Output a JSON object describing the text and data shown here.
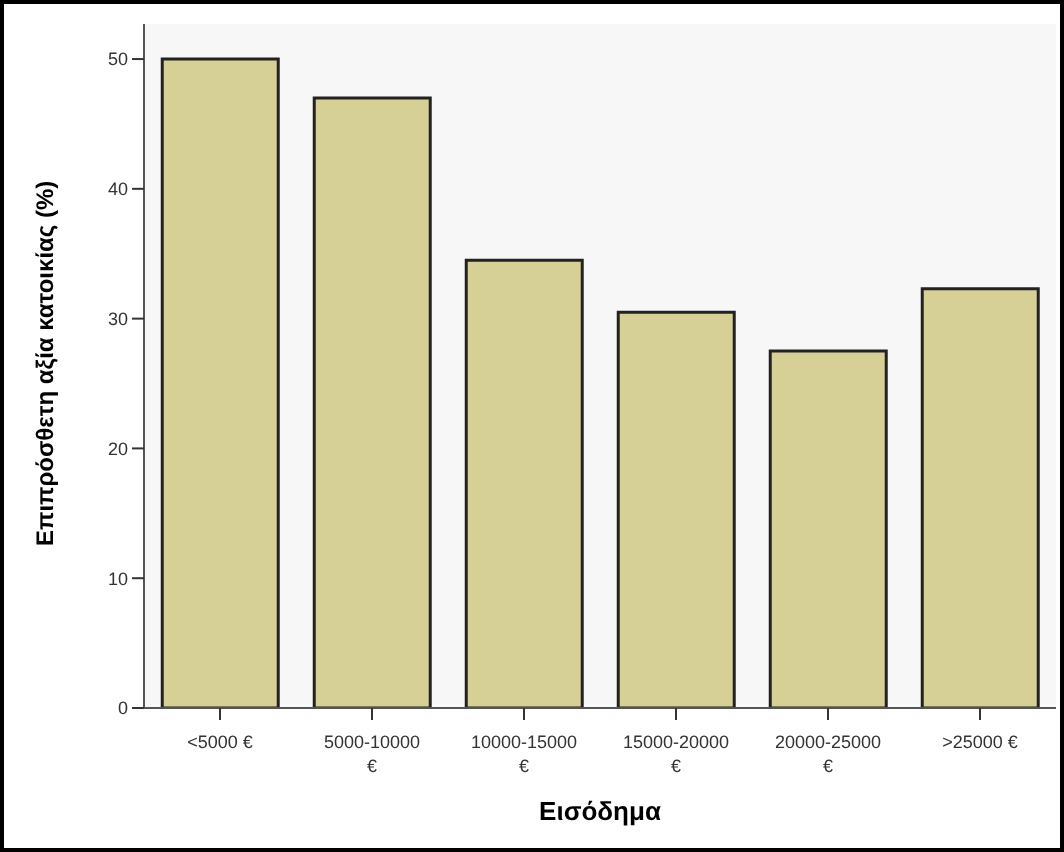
{
  "chart_data": {
    "type": "bar",
    "xlabel": "Εισόδημα",
    "ylabel": "Επιπρόσθετη αξία κατοικίας (%)",
    "categories": [
      "<5000 €",
      "5000-10000 €",
      "10000-15000 €",
      "15000-20000 €",
      "20000-25000 €",
      ">25000 €"
    ],
    "values": [
      50,
      47,
      34.5,
      30.5,
      27.5,
      32.3
    ],
    "color": "#d6cf96",
    "ylim": [
      0,
      52.7
    ],
    "yticks": [
      0,
      10,
      20,
      30,
      40,
      50
    ]
  }
}
